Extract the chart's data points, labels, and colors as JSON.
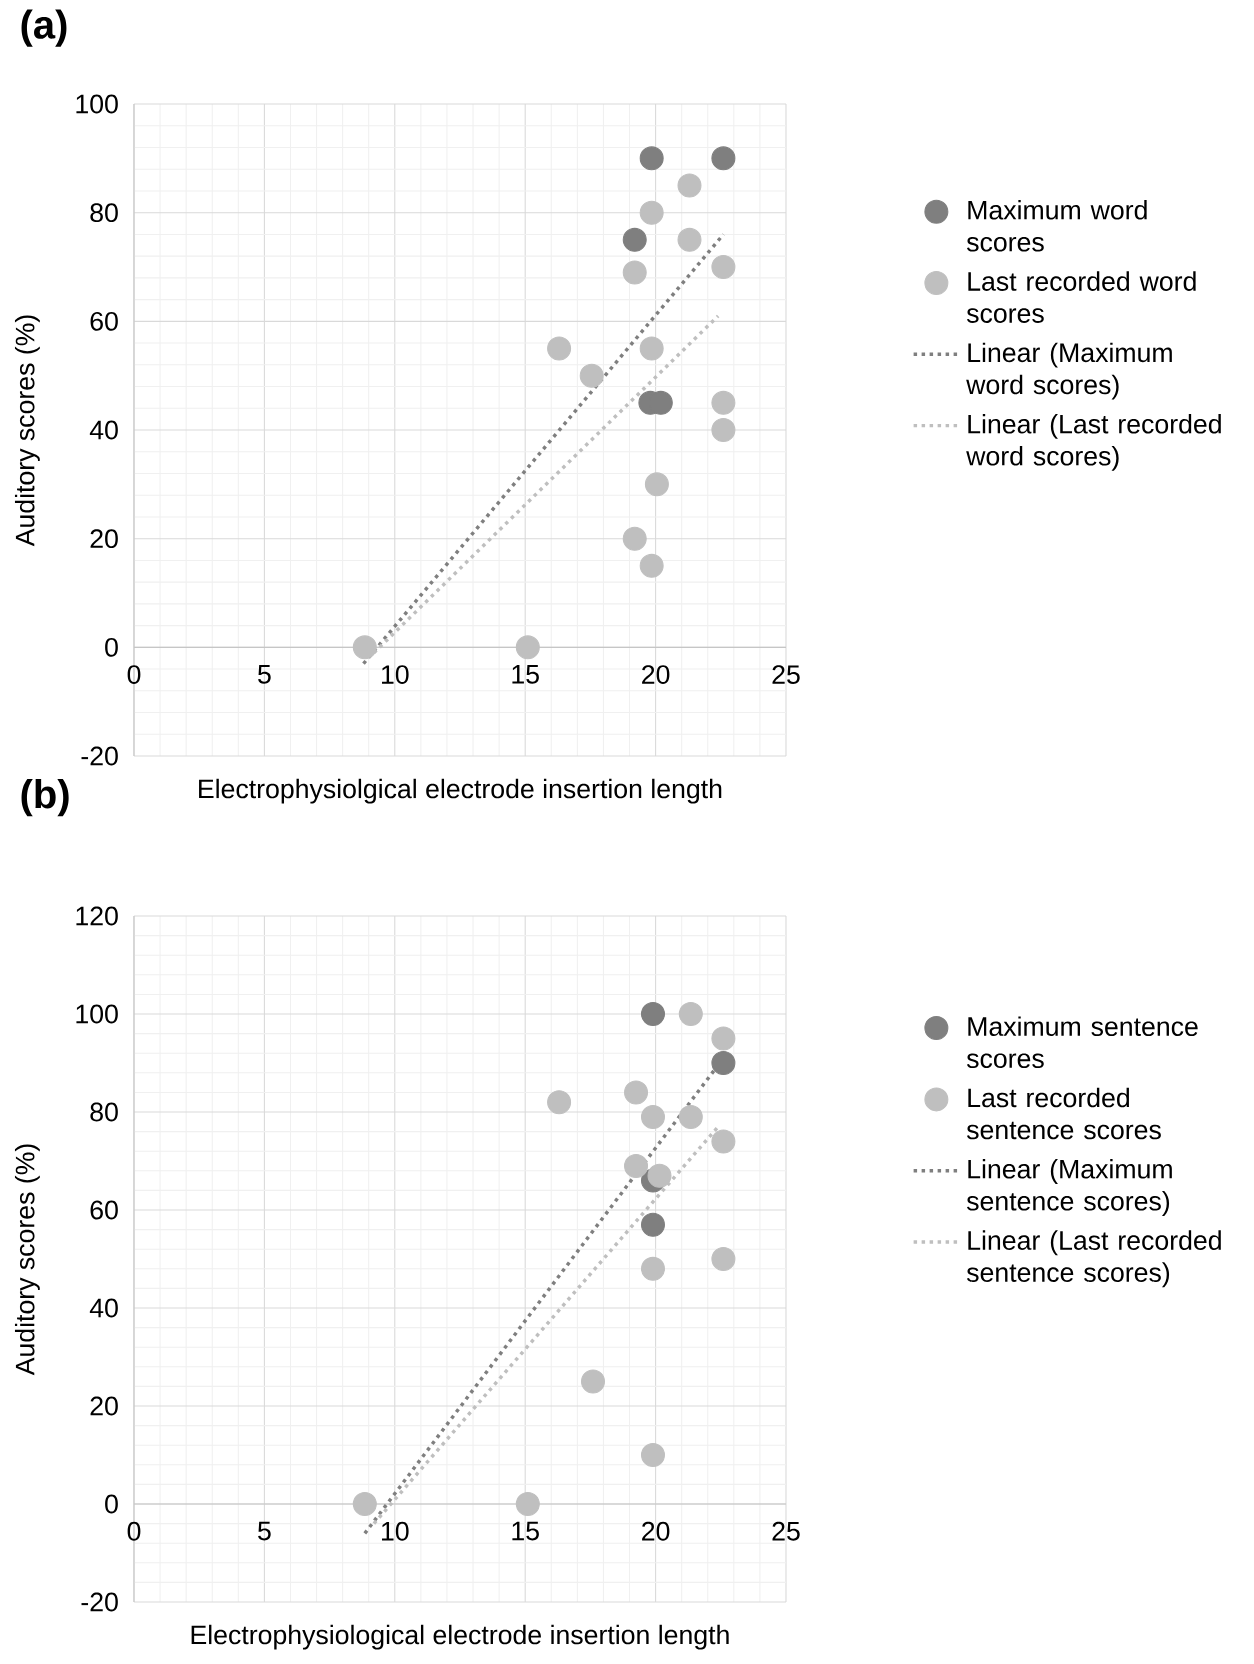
{
  "chart_data": [
    {
      "type": "scatter",
      "title": "(a)",
      "xlabel": "Electrophysiolgical electrode insertion length",
      "ylabel": "Auditory scores (%)",
      "xlim": [
        0,
        25
      ],
      "ylim": [
        -20,
        100
      ],
      "xticks": [
        0,
        5,
        10,
        15,
        20,
        25
      ],
      "yticks": [
        -20,
        0,
        20,
        40,
        60,
        80,
        100
      ],
      "grid": true,
      "legend": "right",
      "series": [
        {
          "name": "Maximum word scores",
          "color": "#7f7f7f",
          "marker": "circle",
          "x": [
            19.85,
            22.6,
            19.2,
            19.8,
            20.2
          ],
          "values": [
            90,
            90,
            75,
            45,
            45
          ]
        },
        {
          "name": "Last recorded word scores",
          "color": "#bfbfbf",
          "marker": "circle",
          "x": [
            21.3,
            19.85,
            21.3,
            22.6,
            19.2,
            16.3,
            19.85,
            17.55,
            22.6,
            22.6,
            20.05,
            19.2,
            19.85,
            8.85,
            15.1
          ],
          "values": [
            85,
            80,
            75,
            70,
            69,
            55,
            55,
            50,
            45,
            40,
            30,
            20,
            15,
            0,
            0
          ]
        },
        {
          "name": "Linear (Maximum word scores)",
          "type": "line",
          "color": "#7f7f7f",
          "marker": "none",
          "line_style": "dotted",
          "x": [
            8.8,
            22.6
          ],
          "values": [
            -3,
            76
          ]
        },
        {
          "name": "Linear (Last recorded word scores)",
          "type": "line",
          "color": "#bfbfbf",
          "marker": "none",
          "line_style": "dotted",
          "x": [
            9.2,
            22.4
          ],
          "values": [
            -1,
            61
          ]
        }
      ]
    },
    {
      "type": "scatter",
      "title": "(b)",
      "xlabel": "Electrophysiological electrode insertion length",
      "ylabel": "Auditory scores (%)",
      "xlim": [
        0,
        25
      ],
      "ylim": [
        -20,
        120
      ],
      "xticks": [
        0,
        5,
        10,
        15,
        20,
        25
      ],
      "yticks": [
        -20,
        0,
        20,
        40,
        60,
        80,
        100,
        120
      ],
      "grid": true,
      "legend": "right",
      "series": [
        {
          "name": "Maximum sentence scores",
          "color": "#7f7f7f",
          "marker": "circle",
          "x": [
            19.9,
            22.6,
            19.9,
            19.9
          ],
          "values": [
            100,
            90,
            66,
            57
          ]
        },
        {
          "name": "Last recorded sentence scores",
          "color": "#bfbfbf",
          "marker": "circle",
          "x": [
            21.35,
            22.6,
            19.25,
            16.3,
            19.9,
            21.35,
            22.6,
            19.25,
            20.15,
            19.9,
            22.6,
            17.6,
            19.9,
            8.85,
            15.1
          ],
          "values": [
            100,
            95,
            84,
            82,
            79,
            79,
            74,
            69,
            67,
            48,
            50,
            25,
            10,
            0,
            0
          ]
        },
        {
          "name": "Linear (Maximum sentence scores)",
          "type": "line",
          "color": "#7f7f7f",
          "marker": "none",
          "line_style": "dotted",
          "x": [
            8.85,
            22.6
          ],
          "values": [
            -6,
            91
          ]
        },
        {
          "name": "Linear (Last recorded sentence scores)",
          "type": "line",
          "color": "#bfbfbf",
          "marker": "none",
          "line_style": "dotted",
          "x": [
            9.2,
            22.4
          ],
          "values": [
            -4,
            77
          ]
        }
      ]
    }
  ]
}
